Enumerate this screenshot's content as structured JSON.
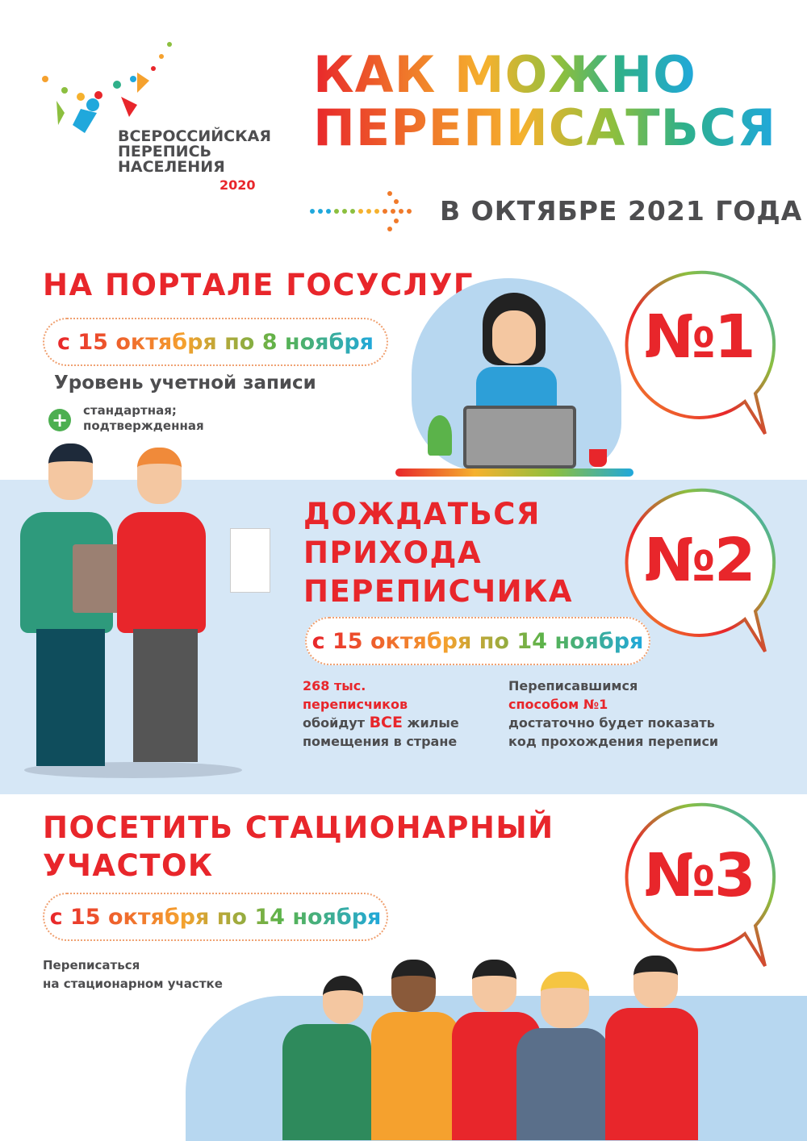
{
  "logo": {
    "line1": "ВСЕРОССИЙСКАЯ",
    "line2": "ПЕРЕПИСЬ",
    "line3": "НАСЕЛЕНИЯ",
    "year": "2020"
  },
  "header": {
    "title_line1": "КАК МОЖНО",
    "title_line2": "ПЕРЕПИСАТЬСЯ",
    "subtitle": "В ОКТЯБРЕ 2021 ГОДА"
  },
  "method1": {
    "title": "НА ПОРТАЛЕ ГОСУСЛУГ",
    "dates": "с 15 октября по 8 ноября",
    "account_label": "Уровень учетной записи",
    "account_levels_line1": "стандартная;",
    "account_levels_line2": "подтвержденная",
    "number": "№1"
  },
  "method2": {
    "title_line1": "ДОЖДАТЬСЯ",
    "title_line2": "ПРИХОДА",
    "title_line3": "ПЕРЕПИСЧИКА",
    "dates": "с 15 октября по 14 ноября",
    "number": "№2",
    "left_text": {
      "highlight1": "268 тыс.",
      "highlight2": "переписчиков",
      "pre": "обойдут ",
      "caps": "ВСЕ",
      "post": " жилые",
      "line4": "помещения в стране"
    },
    "right_text": {
      "line1": "Переписавшимся",
      "highlight": "способом №1",
      "line3": "достаточно будет показать",
      "line4": "код прохождения переписи"
    }
  },
  "method3": {
    "title_line1": "ПОСЕТИТЬ СТАЦИОНАРНЫЙ",
    "title_line2": "УЧАСТОК",
    "dates": "с 15 октября по 14 ноября",
    "note_line1": "Переписаться",
    "note_line2": "на стационарном участке",
    "number": "№3"
  },
  "colors": {
    "accent_red": "#e8262b",
    "band_blue": "#d6e7f6",
    "text_gray": "#4d4d4f",
    "plus_green": "#4caf50"
  }
}
